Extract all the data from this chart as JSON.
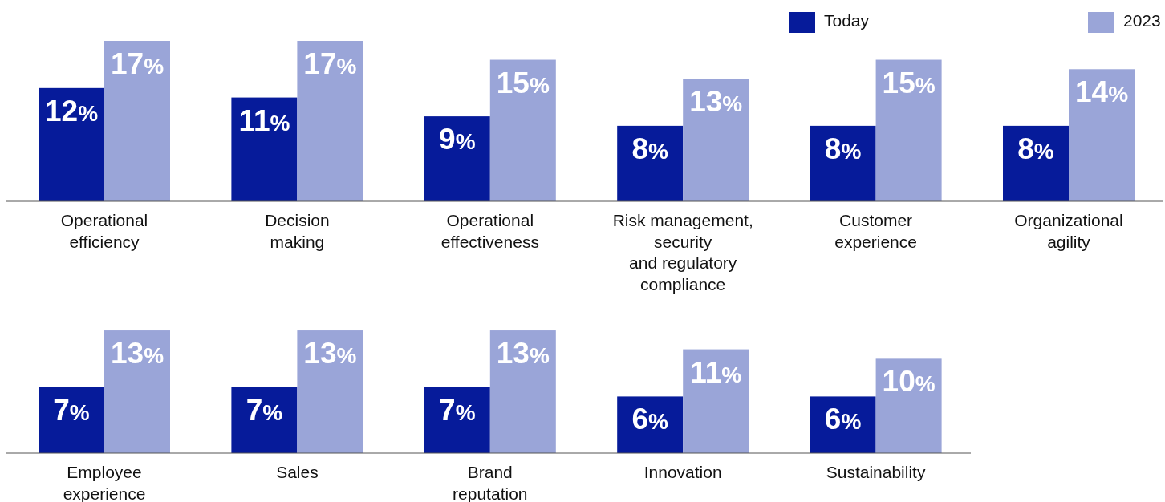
{
  "chart_data": [
    {
      "type": "bar",
      "categories": [
        "Operational\nefficiency",
        "Decision\nmaking",
        "Operational\neffectiveness",
        "Risk management,\nsecurity\nand regulatory\ncompliance",
        "Customer\nexperience",
        "Organizational\nagility"
      ],
      "series": [
        {
          "name": "Today",
          "color": "#061b9a",
          "values": [
            12,
            11,
            9,
            8,
            8,
            8
          ],
          "value_labels": [
            "12%",
            "11%",
            "9%",
            "8%",
            "8%",
            "8%"
          ]
        },
        {
          "name": "2023",
          "color": "#9aa5d8",
          "values": [
            17,
            17,
            15,
            13,
            15,
            14
          ],
          "value_labels": [
            "17%",
            "17%",
            "15%",
            "13%",
            "15%",
            "14%"
          ]
        }
      ],
      "tick_labels": "x",
      "legend": "top right"
    },
    {
      "type": "bar",
      "categories": [
        "Employee\nexperience",
        "Sales",
        "Brand\nreputation",
        "Innovation",
        "Sustainability"
      ],
      "series": [
        {
          "color": "#061b9a",
          "values": [
            7,
            7,
            7,
            6,
            6
          ],
          "value_labels": [
            "7%",
            "7%",
            "7%",
            "6%",
            "6%"
          ]
        },
        {
          "color": "#9aa5d8",
          "values": [
            13,
            13,
            13,
            11,
            10
          ],
          "value_labels": [
            "13%",
            "13%",
            "13%",
            "11%",
            "10%"
          ]
        }
      ],
      "tick_labels": "x",
      "legend": false
    }
  ]
}
